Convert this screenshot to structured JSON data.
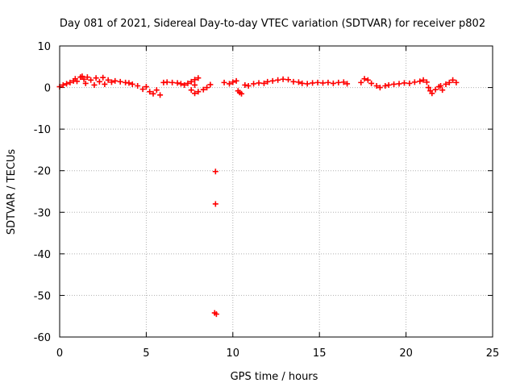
{
  "chart_data": {
    "type": "scatter",
    "title": "Day 081 of 2021, Sidereal Day-to-day VTEC variation (SDTVAR) for receiver p802",
    "xlabel": "GPS time / hours",
    "ylabel": "SDTVAR / TECUs",
    "xlim": [
      0,
      25
    ],
    "ylim": [
      -60,
      10
    ],
    "xticks": [
      0,
      5,
      10,
      15,
      20,
      25
    ],
    "yticks": [
      10,
      0,
      -10,
      -20,
      -30,
      -40,
      -50,
      -60
    ],
    "grid": true,
    "marker": "+",
    "color": "#ff0000",
    "series": [
      {
        "name": "SDTVAR",
        "points": [
          [
            0.0,
            0.2
          ],
          [
            0.2,
            0.6
          ],
          [
            0.4,
            0.9
          ],
          [
            0.6,
            1.2
          ],
          [
            0.8,
            1.6
          ],
          [
            0.9,
            2.1
          ],
          [
            1.0,
            1.5
          ],
          [
            1.2,
            2.5
          ],
          [
            1.3,
            2.7
          ],
          [
            1.4,
            2.0
          ],
          [
            1.5,
            1.0
          ],
          [
            1.6,
            2.5
          ],
          [
            1.8,
            1.8
          ],
          [
            2.0,
            0.6
          ],
          [
            2.1,
            2.3
          ],
          [
            2.3,
            1.4
          ],
          [
            2.5,
            2.4
          ],
          [
            2.6,
            0.8
          ],
          [
            2.8,
            1.8
          ],
          [
            3.0,
            1.3
          ],
          [
            3.2,
            1.6
          ],
          [
            3.5,
            1.4
          ],
          [
            3.8,
            1.2
          ],
          [
            4.0,
            1.1
          ],
          [
            4.2,
            0.8
          ],
          [
            4.5,
            0.4
          ],
          [
            4.8,
            -0.4
          ],
          [
            5.0,
            0.2
          ],
          [
            5.2,
            -1.0
          ],
          [
            5.4,
            -1.5
          ],
          [
            5.6,
            -0.6
          ],
          [
            5.8,
            -1.8
          ],
          [
            6.0,
            1.2
          ],
          [
            6.2,
            1.3
          ],
          [
            6.5,
            1.2
          ],
          [
            6.8,
            1.1
          ],
          [
            7.0,
            0.9
          ],
          [
            7.2,
            0.6
          ],
          [
            7.4,
            1.0
          ],
          [
            7.6,
            1.4
          ],
          [
            7.8,
            1.9
          ],
          [
            8.0,
            2.3
          ],
          [
            7.8,
            0.6
          ],
          [
            7.6,
            -0.6
          ],
          [
            7.8,
            -1.4
          ],
          [
            8.0,
            -1.0
          ],
          [
            8.3,
            -0.5
          ],
          [
            8.5,
            0.0
          ],
          [
            8.7,
            0.7
          ],
          [
            9.0,
            -20.2
          ],
          [
            9.0,
            -28.0
          ],
          [
            8.95,
            -54.2
          ],
          [
            9.05,
            -54.5
          ],
          [
            9.5,
            1.2
          ],
          [
            9.8,
            0.9
          ],
          [
            10.0,
            1.3
          ],
          [
            10.2,
            1.6
          ],
          [
            10.3,
            -0.8
          ],
          [
            10.4,
            -1.2
          ],
          [
            10.5,
            -1.5
          ],
          [
            10.7,
            0.6
          ],
          [
            10.9,
            0.4
          ],
          [
            11.2,
            0.9
          ],
          [
            11.5,
            1.1
          ],
          [
            11.8,
            1.0
          ],
          [
            12.0,
            1.4
          ],
          [
            12.3,
            1.6
          ],
          [
            12.6,
            1.8
          ],
          [
            12.9,
            2.0
          ],
          [
            13.2,
            1.9
          ],
          [
            13.5,
            1.4
          ],
          [
            13.8,
            1.3
          ],
          [
            14.0,
            1.0
          ],
          [
            14.3,
            0.9
          ],
          [
            14.6,
            1.1
          ],
          [
            14.9,
            1.2
          ],
          [
            15.2,
            1.1
          ],
          [
            15.5,
            1.2
          ],
          [
            15.8,
            1.0
          ],
          [
            16.1,
            1.2
          ],
          [
            16.4,
            1.3
          ],
          [
            16.6,
            0.9
          ],
          [
            17.4,
            1.2
          ],
          [
            17.6,
            2.1
          ],
          [
            17.8,
            1.8
          ],
          [
            18.0,
            1.0
          ],
          [
            18.3,
            0.4
          ],
          [
            18.5,
            0.0
          ],
          [
            18.8,
            0.4
          ],
          [
            19.0,
            0.6
          ],
          [
            19.3,
            0.8
          ],
          [
            19.6,
            0.9
          ],
          [
            19.9,
            1.1
          ],
          [
            20.2,
            1.0
          ],
          [
            20.5,
            1.3
          ],
          [
            20.8,
            1.5
          ],
          [
            21.0,
            1.8
          ],
          [
            21.2,
            1.3
          ],
          [
            21.3,
            0.0
          ],
          [
            21.4,
            -0.8
          ],
          [
            21.5,
            -1.4
          ],
          [
            21.7,
            -0.5
          ],
          [
            21.9,
            0.2
          ],
          [
            22.0,
            0.4
          ],
          [
            22.1,
            -0.6
          ],
          [
            22.3,
            0.8
          ],
          [
            22.5,
            1.2
          ],
          [
            22.7,
            1.8
          ],
          [
            22.9,
            1.2
          ]
        ]
      }
    ]
  }
}
